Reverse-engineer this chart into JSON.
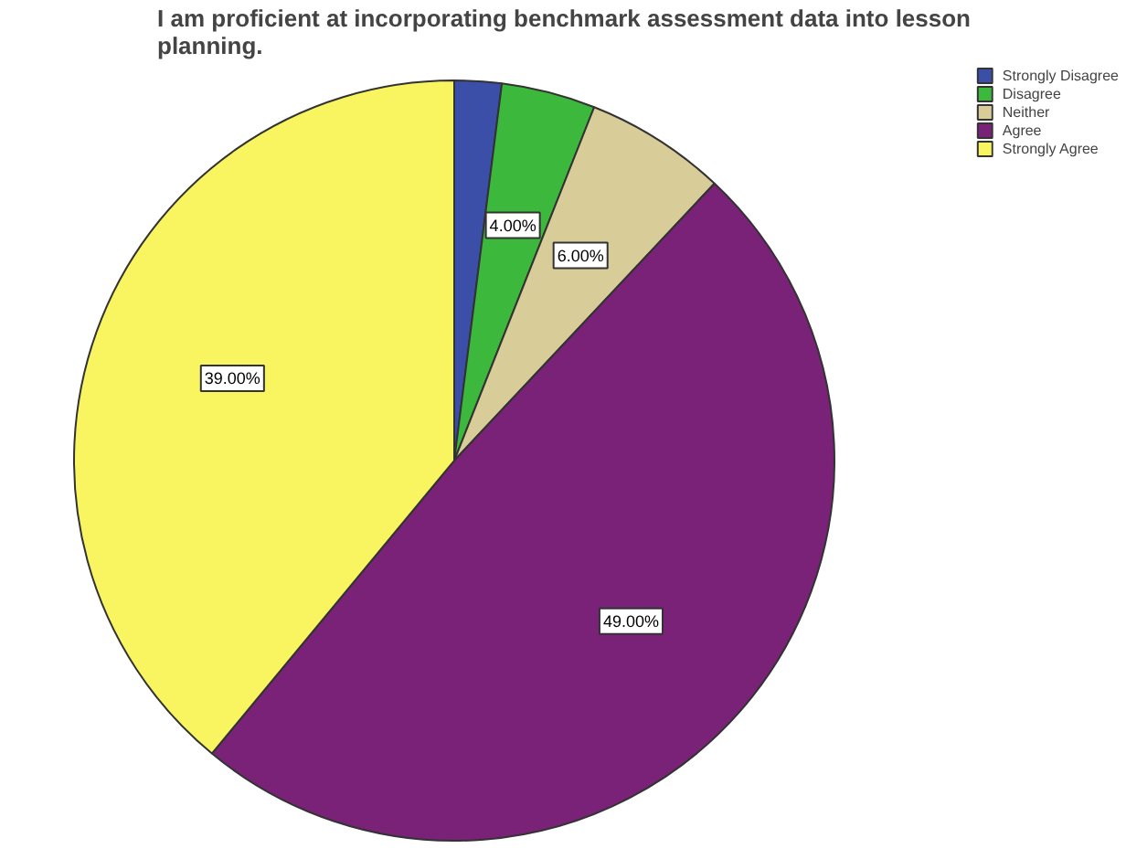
{
  "chart_data": {
    "type": "pie",
    "title": "I am proficient at incorporating benchmark assessment data into lesson planning.",
    "categories": [
      "Strongly Disagree",
      "Disagree",
      "Neither",
      "Agree",
      "Strongly Agree"
    ],
    "values": [
      2,
      4,
      6,
      49,
      39
    ],
    "colors": [
      "#3c4fa8",
      "#3cb83c",
      "#d8cc98",
      "#7a2278",
      "#f8f560"
    ],
    "value_labels": [
      null,
      "4.00%",
      "6.00%",
      "49.00%",
      "39.00%"
    ],
    "legend": "top right"
  }
}
